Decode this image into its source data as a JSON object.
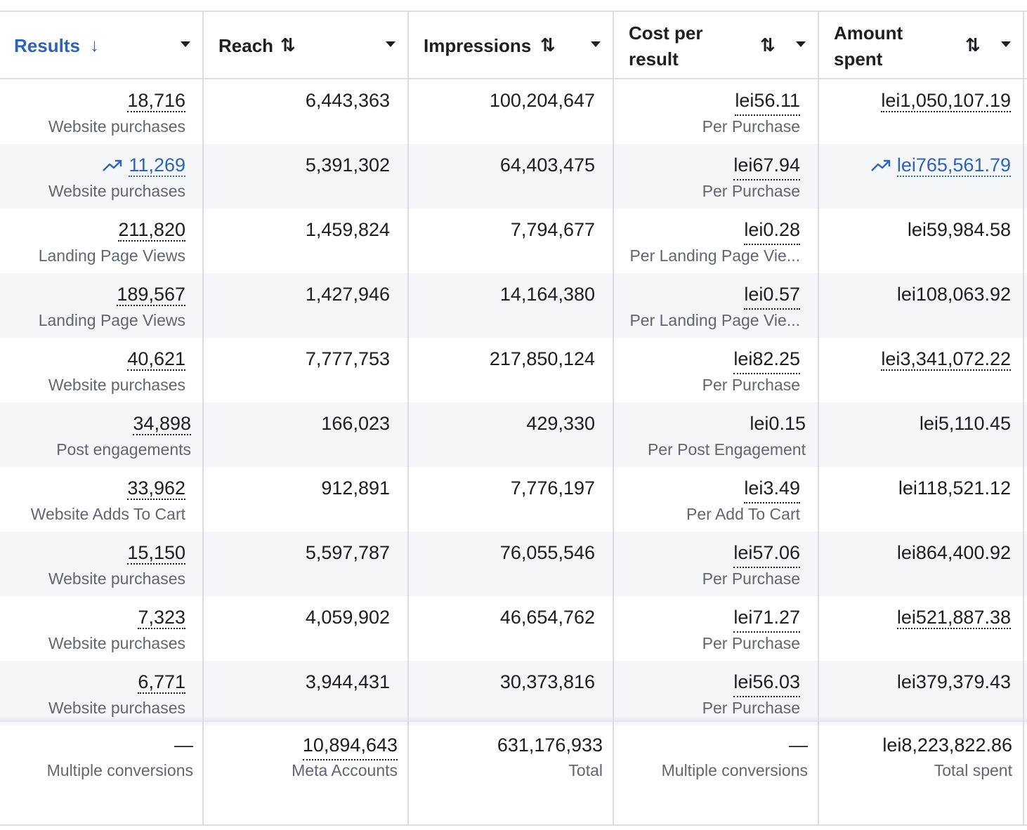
{
  "columns": [
    {
      "label": "Results",
      "sort": "↓"
    },
    {
      "label": "Reach",
      "sort": "⇅"
    },
    {
      "label": "Impressions",
      "sort": "⇅"
    },
    {
      "label": "Cost per\nresult",
      "sort": "⇅"
    },
    {
      "label": "Amount\nspent",
      "sort": "⇅"
    }
  ],
  "rows": [
    {
      "results": "18,716",
      "result_type": "Website purchases",
      "reach": "6,443,363",
      "impressions": "100,204,647",
      "cost": "lei56.11",
      "cost_type": "Per Purchase",
      "spent": "lei1,050,107.19"
    },
    {
      "results": "11,269",
      "result_type": "Website purchases",
      "reach": "5,391,302",
      "impressions": "64,403,475",
      "cost": "lei67.94",
      "cost_type": "Per Purchase",
      "spent": "lei765,561.79"
    },
    {
      "results": "211,820",
      "result_type": "Landing Page Views",
      "reach": "1,459,824",
      "impressions": "7,794,677",
      "cost": "lei0.28",
      "cost_type": "Per Landing Page Vie...",
      "spent": "lei59,984.58"
    },
    {
      "results": "189,567",
      "result_type": "Landing Page Views",
      "reach": "1,427,946",
      "impressions": "14,164,380",
      "cost": "lei0.57",
      "cost_type": "Per Landing Page Vie...",
      "spent": "lei108,063.92"
    },
    {
      "results": "40,621",
      "result_type": "Website purchases",
      "reach": "7,777,753",
      "impressions": "217,850,124",
      "cost": "lei82.25",
      "cost_type": "Per Purchase",
      "spent": "lei3,341,072.22"
    },
    {
      "results": "34,898",
      "result_type": "Post engagements",
      "reach": "166,023",
      "impressions": "429,330",
      "cost": "lei0.15",
      "cost_type": "Per Post Engagement",
      "spent": "lei5,110.45"
    },
    {
      "results": "33,962",
      "result_type": "Website Adds To Cart",
      "reach": "912,891",
      "impressions": "7,776,197",
      "cost": "lei3.49",
      "cost_type": "Per Add To Cart",
      "spent": "lei118,521.12"
    },
    {
      "results": "15,150",
      "result_type": "Website purchases",
      "reach": "5,597,787",
      "impressions": "76,055,546",
      "cost": "lei57.06",
      "cost_type": "Per Purchase",
      "spent": "lei864,400.92"
    },
    {
      "results": "7,323",
      "result_type": "Website purchases",
      "reach": "4,059,902",
      "impressions": "46,654,762",
      "cost": "lei71.27",
      "cost_type": "Per Purchase",
      "spent": "lei521,887.38"
    },
    {
      "results": "6,771",
      "result_type": "Website purchases",
      "reach": "3,944,431",
      "impressions": "30,373,816",
      "cost": "lei56.03",
      "cost_type": "Per Purchase",
      "spent": "lei379,379.43"
    }
  ],
  "totals": {
    "results": "—",
    "results_sub": "Multiple conversions",
    "reach": "10,894,643",
    "reach_sub": "Meta Accounts",
    "impressions": "631,176,933",
    "impressions_sub": "Total",
    "cost": "—",
    "cost_sub": "Multiple conversions",
    "spent": "lei8,223,822.86",
    "spent_sub": "Total spent"
  },
  "colors": {
    "link": "#2d64b4",
    "border": "#dadde1",
    "alt_row": "#f5f6f7",
    "muted": "#606770"
  },
  "icons": {
    "trend": "trending-up-icon",
    "dropdown": "caret-down-icon"
  }
}
